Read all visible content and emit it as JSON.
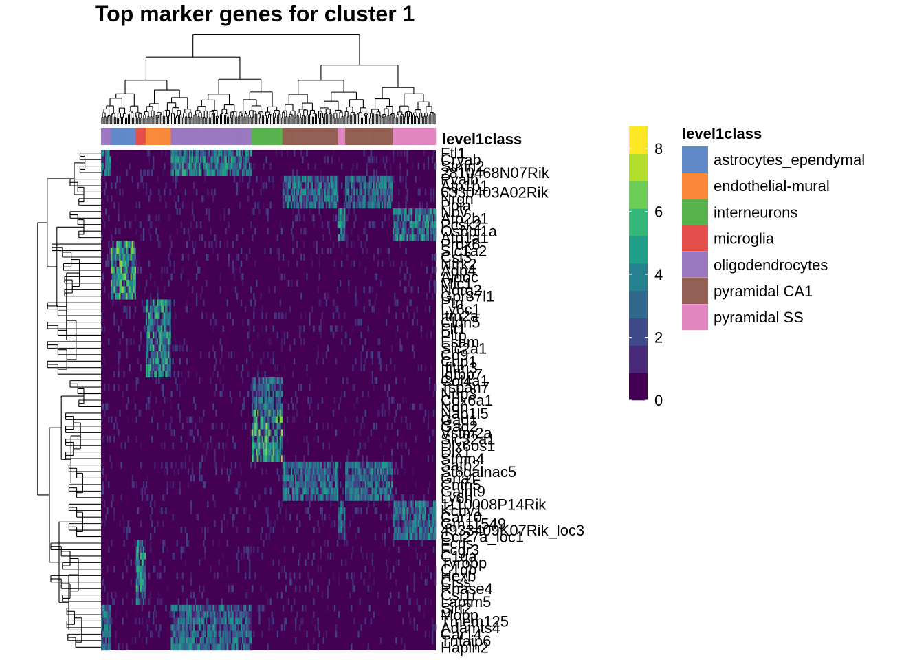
{
  "chart_data": {
    "type": "heatmap",
    "title": "Top marker genes for cluster 1",
    "annotation_title": "level1class",
    "genes": [
      "Ftl1",
      "Cryab",
      "Stmn2",
      "2810468N07Rik",
      "Pvalb",
      "Atp1b1",
      "6330403A02Rik",
      "Nrgn",
      "Ppia",
      "Nov",
      "Atp2b1",
      "Pcsk2",
      "Osbpl1a",
      "Atp1a1",
      "Prdx6",
      "Slc1a2",
      "Cst3",
      "Ntrk2",
      "Aqp4",
      "Aldoc",
      "Mlc1",
      "Ndrg2",
      "Gpr37l1",
      "Ptn",
      "Ly6c1",
      "Itm2a",
      "Cldn5",
      "Flt1",
      "Pltp",
      "Esam",
      "Slc2a1",
      "Cd9",
      "Crip1",
      "Ifitm3",
      "Igfbp7",
      "Col4a1",
      "Tspan7",
      "Nrip3",
      "Cox6a1",
      "Ndn",
      "Nap1l5",
      "Gad1",
      "Gad2",
      "Vstm2a",
      "Slc32a1",
      "Dlx6os1",
      "Dlx1",
      "Stmn4",
      "Satb2",
      "St6galnac5",
      "Gria1",
      "Cntn5",
      "Galnt9",
      "Ly6h",
      "1110008P14Rik",
      "Kcnv1",
      "Car10",
      "Gm11549",
      "4933409K07Rik_loc3",
      "Ccl27a_loc1",
      "Fcrls",
      "Fcgr3",
      "C1qa",
      "Tyrobp",
      "C1qb",
      "Hexb",
      "Ctss",
      "Rnase4",
      "Csf1r",
      "Laptm5",
      "Sirt2",
      "Mobp",
      "Tmem125",
      "Adamts4",
      "Car14",
      "Tnfaip6",
      "Hapln2"
    ],
    "clusters": [
      "astrocytes_ependymal",
      "endothelial-mural",
      "interneurons",
      "microglia",
      "oligodendrocytes",
      "pyramidal CA1",
      "pyramidal SS"
    ],
    "legend": {
      "title": "level1class",
      "items": [
        {
          "label": "astrocytes_ependymal",
          "color": "#5F8AC7"
        },
        {
          "label": "endothelial-mural",
          "color": "#FA8A3A"
        },
        {
          "label": "interneurons",
          "color": "#58B24E"
        },
        {
          "label": "microglia",
          "color": "#E34E4A"
        },
        {
          "label": "oligodendrocytes",
          "color": "#9A77BF"
        },
        {
          "label": "pyramidal CA1",
          "color": "#946055"
        },
        {
          "label": "pyramidal SS",
          "color": "#E385C1"
        }
      ]
    },
    "colorbar": {
      "ticks": [
        0,
        2,
        4,
        6,
        8
      ],
      "range": [
        0,
        8.7
      ],
      "colors": [
        "#440154",
        "#482878",
        "#3E4A89",
        "#31688E",
        "#26828E",
        "#1F9E89",
        "#35B779",
        "#6DCD59",
        "#B4DE2C",
        "#FDE725"
      ]
    },
    "column_groups": [
      {
        "cluster": "oligodendrocytes",
        "fraction": 0.03
      },
      {
        "cluster": "astrocytes_ependymal",
        "fraction": 0.075
      },
      {
        "cluster": "microglia",
        "fraction": 0.03
      },
      {
        "cluster": "endothelial-mural",
        "fraction": 0.075
      },
      {
        "cluster": "oligodendrocytes",
        "fraction": 0.24
      },
      {
        "cluster": "interneurons",
        "fraction": 0.09
      },
      {
        "cluster": "pyramidal CA1",
        "fraction": 0.17
      },
      {
        "cluster": "pyramidal SS",
        "fraction": 0.02
      },
      {
        "cluster": "pyramidal CA1",
        "fraction": 0.14
      },
      {
        "cluster": "pyramidal SS",
        "fraction": 0.13
      }
    ],
    "row_blocks": [
      {
        "rows": [
          0,
          1,
          2,
          3
        ],
        "cluster": "oligodendrocytes",
        "level": 4.5
      },
      {
        "rows": [
          4,
          5,
          6,
          7,
          8
        ],
        "cluster": "pyramidal CA1",
        "level": 4
      },
      {
        "rows": [
          9,
          10,
          11,
          12,
          13
        ],
        "cluster": "pyramidal SS",
        "level": 4.5
      },
      {
        "rows": [
          14,
          15,
          16,
          17,
          18,
          19,
          20,
          21,
          22
        ],
        "cluster": "astrocytes_ependymal",
        "level": 6
      },
      {
        "rows": [
          23,
          24,
          25,
          26,
          27,
          28,
          29,
          30,
          31,
          32,
          33,
          34
        ],
        "cluster": "endothelial-mural",
        "level": 5
      },
      {
        "rows": [
          35,
          36,
          37,
          38,
          39
        ],
        "cluster": "interneurons",
        "level": 4
      },
      {
        "rows": [
          40,
          41,
          42,
          43,
          44,
          45,
          46,
          47
        ],
        "cluster": "interneurons",
        "level": 6
      },
      {
        "rows": [
          48,
          49,
          50,
          51,
          52,
          53
        ],
        "cluster": "pyramidal CA1",
        "level": 4
      },
      {
        "rows": [
          54,
          55,
          56,
          57,
          58,
          59
        ],
        "cluster": "pyramidal SS",
        "level": 4
      },
      {
        "rows": [
          60,
          61,
          62,
          63,
          64,
          65,
          66,
          67,
          68,
          69
        ],
        "cluster": "microglia",
        "level": 5
      },
      {
        "rows": [
          70,
          71,
          72,
          73,
          74,
          75,
          76
        ],
        "cluster": "oligodendrocytes",
        "level": 4
      }
    ]
  }
}
